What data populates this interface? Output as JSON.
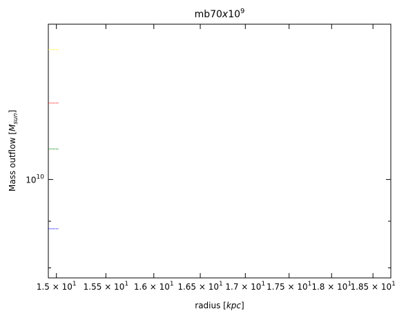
{
  "chart_data": {
    "type": "line",
    "title": "mb70x10⁹",
    "xlabel": "radius [kpc]",
    "ylabel": "Mass outflow [Msun]",
    "x_scale": "log",
    "y_scale": "log",
    "xlim": [
      14.92,
      18.72
    ],
    "ylim": [
      7800000000,
      14800000000
    ],
    "x_ticks": [
      {
        "value": 15.0,
        "mantissa": "1.5"
      },
      {
        "value": 15.5,
        "mantissa": "1.55"
      },
      {
        "value": 16.0,
        "mantissa": "1.6"
      },
      {
        "value": 16.5,
        "mantissa": "1.65"
      },
      {
        "value": 17.0,
        "mantissa": "1.7"
      },
      {
        "value": 17.5,
        "mantissa": "1.75"
      },
      {
        "value": 18.0,
        "mantissa": "1.8"
      },
      {
        "value": 18.5,
        "mantissa": "1.85"
      }
    ],
    "x_tick_base": "10",
    "x_tick_exp": "1",
    "y_major_ticks": [
      {
        "value": 10000000000,
        "base": "10",
        "exp": "10"
      }
    ],
    "grid": false,
    "series": [
      {
        "color": "#0000ff",
        "x": [
          14.92,
          15.02
        ],
        "y": [
          8830000000,
          8830000000
        ]
      },
      {
        "color": "#008000",
        "x": [
          14.92,
          15.02
        ],
        "y": [
          10800000000,
          10800000000
        ]
      },
      {
        "color": "#ff0000",
        "x": [
          14.92,
          15.02
        ],
        "y": [
          12130000000,
          12130000000
        ]
      },
      {
        "color": "#ffff00",
        "x": [
          14.92,
          15.02
        ],
        "y": [
          13880000000,
          13880000000
        ]
      }
    ]
  }
}
